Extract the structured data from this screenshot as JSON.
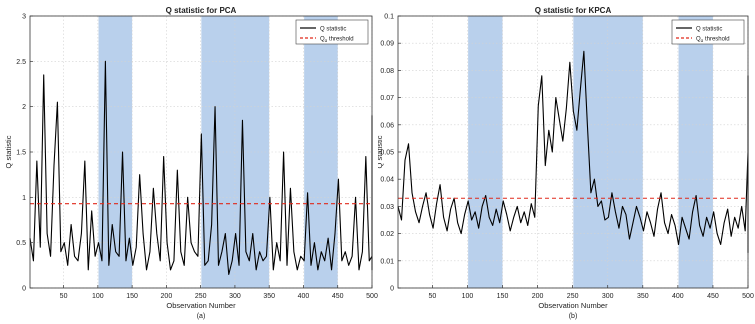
{
  "chart_data": [
    {
      "type": "line",
      "title": "Q statistic for PCA",
      "xlabel": "Observation Number",
      "ylabel": "Q statistic",
      "caption": "(a)",
      "xlim": [
        1,
        500
      ],
      "ylim": [
        0,
        3
      ],
      "xticks": [
        50,
        100,
        150,
        200,
        250,
        300,
        350,
        400,
        450,
        500
      ],
      "yticks": [
        0,
        0.5,
        1,
        1.5,
        2,
        2.5,
        3
      ],
      "ytick_labels": [
        "0",
        "0.5",
        "1",
        "1.5",
        "2",
        "2.5",
        "3"
      ],
      "threshold": 0.93,
      "shaded_regions": [
        [
          101,
          150
        ],
        [
          251,
          350
        ],
        [
          401,
          450
        ]
      ],
      "legend": {
        "position": "top-right",
        "series_label": "Q statistic",
        "threshold_label_main": "Q",
        "threshold_label_sub": "α",
        "threshold_label_rest": " threshold"
      },
      "series": [
        {
          "name": "Q statistic",
          "x_start": 1,
          "x_step": 5,
          "values": [
            0.55,
            0.3,
            1.4,
            0.45,
            2.35,
            0.6,
            0.35,
            1.35,
            2.05,
            0.4,
            0.5,
            0.25,
            0.7,
            0.35,
            0.3,
            0.6,
            1.4,
            0.2,
            0.85,
            0.35,
            0.5,
            0.3,
            2.5,
            0.25,
            0.7,
            0.4,
            0.35,
            1.5,
            0.3,
            0.55,
            0.25,
            0.45,
            1.25,
            0.6,
            0.2,
            0.4,
            1.1,
            0.6,
            0.3,
            1.45,
            0.5,
            0.2,
            0.3,
            1.3,
            0.4,
            0.25,
            1.0,
            0.5,
            0.4,
            0.35,
            1.7,
            0.25,
            0.3,
            0.7,
            2.0,
            0.25,
            0.4,
            0.6,
            0.15,
            0.3,
            0.6,
            0.25,
            1.85,
            0.4,
            0.3,
            0.6,
            0.2,
            0.4,
            0.3,
            0.35,
            1.0,
            0.2,
            0.5,
            0.3,
            1.5,
            0.25,
            1.1,
            0.4,
            0.2,
            0.35,
            0.3,
            1.05,
            0.25,
            0.5,
            0.2,
            0.4,
            0.3,
            0.55,
            0.2,
            0.6,
            1.2,
            0.3,
            0.4,
            0.25,
            0.35,
            1.0,
            0.2,
            0.4,
            1.45,
            0.3,
            0.35,
            0.25,
            1.5,
            0.3,
            0.4,
            0.55,
            0.2,
            0.6,
            0.3,
            0.25,
            0.45,
            0.35,
            0.2,
            1.1,
            0.3,
            0.5,
            0.25,
            0.4,
            0.3,
            0.35,
            1.2,
            0.2,
            0.4,
            1.4,
            0.3,
            0.25,
            0.45,
            0.3,
            0.2,
            1.05,
            0.35,
            0.25,
            0.6,
            0.35,
            0.2,
            0.5,
            1.15,
            0.3,
            0.25,
            0.45,
            0.6,
            0.3,
            0.3,
            0.55,
            0.25,
            0.4,
            0.3,
            0.2,
            0.5,
            0.35,
            0.25,
            1.6,
            0.3,
            0.45,
            0.2,
            0.4,
            0.3,
            1.35,
            0.35,
            0.25,
            0.45,
            0.3,
            0.2,
            0.4,
            0.35,
            0.9,
            1.05,
            0.4,
            0.3,
            0.6,
            0.25,
            0.45,
            0.3,
            0.4,
            0.2,
            0.55,
            0.3,
            0.35,
            0.45,
            0.25,
            0.5,
            0.3,
            0.4,
            0.35,
            0.6,
            1.2,
            0.25,
            0.55,
            0.3,
            0.4,
            0.45,
            0.3,
            0.5,
            0.35,
            0.25,
            0.7,
            0.4,
            0.3,
            0.55,
            0.25,
            1.3,
            0.35,
            0.3,
            0.45,
            0.25,
            0.6,
            0.3,
            0.4,
            0.35,
            0.25,
            1.9,
            0.3,
            0.55,
            0.45,
            0.4,
            0.3,
            0.6,
            0.25,
            1.1,
            0.35,
            0.45,
            0.3,
            0.55,
            0.4,
            0.25,
            1.2,
            0.35,
            0.3,
            0.5,
            0.25,
            0.4,
            0.35,
            1.6,
            0.3,
            0.25,
            0.55,
            1.15,
            0.4,
            0.3,
            0.35,
            0.45,
            0.25,
            1.05,
            0.4,
            0.3,
            0.55,
            0.35,
            0.6,
            0.25,
            1.3,
            0.3,
            0.4,
            0.45,
            0.3,
            0.5,
            0.35,
            1.55,
            0.4,
            0.3,
            0.25,
            0.6,
            0.35,
            0.45,
            0.3,
            0.55,
            0.25,
            0.4,
            0.3,
            0.35,
            0.5,
            0.25,
            1.45,
            0.3,
            0.4,
            0.35,
            1.1,
            0.3,
            0.25,
            0.45,
            0.4,
            0.3,
            0.6,
            0.35,
            0.25,
            0.5,
            0.3,
            1.2,
            0.4,
            0.3,
            0.25,
            0.45,
            0.35,
            0.3,
            1.35,
            0.4,
            0.25,
            0.5,
            0.3,
            1.0,
            0.35,
            0.45,
            0.3,
            0.4,
            0.25,
            1.1,
            0.35,
            0.3,
            0.5,
            0.4,
            0.25,
            1.2,
            0.3,
            0.35,
            0.45,
            0.25,
            0.6,
            0.4,
            0.3,
            1.55,
            0.35,
            0.45,
            0.3,
            0.25,
            0.4,
            1.35,
            0.3,
            0.45,
            0.25,
            0.5,
            0.35,
            0.4,
            0.3,
            0.6,
            0.25,
            0.35,
            1.35,
            0.3,
            0.45,
            0.4,
            0.25,
            0.55,
            0.3,
            0.35,
            0.25,
            0.3,
            1.25,
            0.4,
            0.3,
            0.35,
            0.25,
            0.5,
            0.3,
            1.35,
            0.4,
            0.25,
            0.3,
            0.45,
            0.35,
            0.3,
            1.55,
            0.25,
            0.4,
            0.3,
            0.5,
            0.35,
            0.25,
            0.4,
            0.3,
            1.35,
            0.25,
            0.45,
            0.3,
            0.4,
            0.35,
            0.25,
            0.5,
            0.3,
            1.55,
            0.4,
            0.3,
            0.35,
            0.25,
            0.45,
            0.3,
            0.6,
            0.35,
            0.25,
            0.4,
            1.3,
            0.3,
            0.35,
            0.25,
            0.5,
            0.3,
            0.4,
            1.05,
            0.35,
            0.3,
            0.25,
            0.45,
            0.4,
            0.3,
            1.2,
            0.35,
            0.25,
            0.5,
            0.3,
            0.4,
            0.35,
            1.05,
            0.3,
            0.25,
            0.45,
            0.35,
            0.6,
            0.3,
            0.4,
            0.25,
            1.3,
            0.35,
            0.3,
            0.45,
            0.25,
            0.4,
            0.3,
            0.55,
            0.35,
            1.1,
            0.25,
            0.4,
            0.3,
            0.45,
            0.35,
            0.25,
            1.0,
            0.3,
            0.4,
            0.5,
            0.25,
            0.35,
            0.3,
            0.45,
            0.25,
            0.4,
            0.35,
            0.3,
            0.5,
            0.25,
            1.35,
            0.3
          ]
        }
      ]
    },
    {
      "type": "line",
      "title": "Q statistic for KPCA",
      "xlabel": "Observation Number",
      "ylabel": "Q statistic",
      "caption": "(b)",
      "xlim": [
        1,
        500
      ],
      "ylim": [
        0,
        0.1
      ],
      "xticks": [
        50,
        100,
        150,
        200,
        250,
        300,
        350,
        400,
        450,
        500
      ],
      "yticks": [
        0,
        0.01,
        0.02,
        0.03,
        0.04,
        0.05,
        0.06,
        0.07,
        0.08,
        0.09,
        0.1
      ],
      "ytick_labels": [
        "0",
        "0.01",
        "0.02",
        "0.03",
        "0.04",
        "0.05",
        "0.06",
        "0.07",
        "0.08",
        "0.09",
        "0.1"
      ],
      "threshold": 0.033,
      "shaded_regions": [
        [
          101,
          150
        ],
        [
          251,
          350
        ],
        [
          401,
          450
        ]
      ],
      "legend": {
        "position": "top-right",
        "series_label": "Q statistic",
        "threshold_label_main": "Q",
        "threshold_label_sub": "α",
        "threshold_label_rest": " threshold"
      },
      "series": [
        {
          "name": "Q statistic",
          "x_start": 1,
          "x_step": 5,
          "values": [
            0.03,
            0.025,
            0.047,
            0.053,
            0.035,
            0.028,
            0.024,
            0.03,
            0.035,
            0.027,
            0.022,
            0.031,
            0.038,
            0.026,
            0.021,
            0.029,
            0.033,
            0.024,
            0.02,
            0.027,
            0.032,
            0.025,
            0.028,
            0.022,
            0.03,
            0.034,
            0.026,
            0.023,
            0.029,
            0.024,
            0.032,
            0.027,
            0.021,
            0.026,
            0.03,
            0.024,
            0.028,
            0.023,
            0.031,
            0.026,
            0.067,
            0.078,
            0.045,
            0.058,
            0.05,
            0.07,
            0.062,
            0.054,
            0.066,
            0.083,
            0.065,
            0.058,
            0.073,
            0.087,
            0.06,
            0.035,
            0.04,
            0.03,
            0.032,
            0.025,
            0.026,
            0.035,
            0.028,
            0.022,
            0.03,
            0.027,
            0.018,
            0.024,
            0.03,
            0.026,
            0.021,
            0.028,
            0.024,
            0.019,
            0.029,
            0.035,
            0.024,
            0.02,
            0.027,
            0.023,
            0.016,
            0.026,
            0.022,
            0.018,
            0.028,
            0.034,
            0.023,
            0.019,
            0.026,
            0.022,
            0.028,
            0.02,
            0.016,
            0.024,
            0.029,
            0.019,
            0.026,
            0.022,
            0.03,
            0.021,
            0.05,
            0.054,
            0.047,
            0.055,
            0.06,
            0.049,
            0.053,
            0.058,
            0.044,
            0.056,
            0.062,
            0.05,
            0.045,
            0.055,
            0.06,
            0.052,
            0.047,
            0.065,
            0.05,
            0.056,
            0.061,
            0.048,
            0.057,
            0.045,
            0.053,
            0.058,
            0.049,
            0.035,
            0.055,
            0.051,
            0.044,
            0.059,
            0.047,
            0.054,
            0.05,
            0.063,
            0.046,
            0.053,
            0.048,
            0.057,
            0.013,
            0.05,
            0.055,
            0.045,
            0.068,
            0.05,
            0.038,
            0.048,
            0.055,
            0.04,
            0.019,
            0.022,
            0.018,
            0.015,
            0.021,
            0.017,
            0.024,
            0.019,
            0.016,
            0.022,
            0.018,
            0.015,
            0.02,
            0.025,
            0.017,
            0.021,
            0.018,
            0.023,
            0.016,
            0.02,
            0.055,
            0.068,
            0.06,
            0.075,
            0.07,
            0.063,
            0.05,
            0.072,
            0.078,
            0.065,
            0.031,
            0.058,
            0.052,
            0.062,
            0.055,
            0.045,
            0.05,
            0.047,
            0.053,
            0.044,
            0.022,
            0.018,
            0.016,
            0.021,
            0.026,
            0.019,
            0.028,
            0.023,
            0.029,
            0.021
          ]
        }
      ]
    }
  ]
}
